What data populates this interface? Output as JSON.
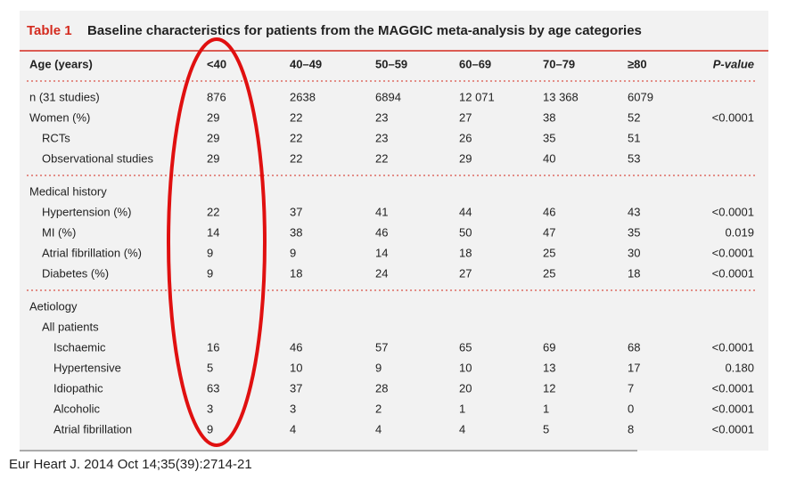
{
  "table": {
    "label": "Table 1",
    "title": "Baseline characteristics for patients from the MAGGIC meta-analysis by age categories",
    "header": [
      "Age (years)",
      "<40",
      "40–49",
      "50–59",
      "60–69",
      "70–79",
      "≥80",
      "P-value"
    ],
    "sections": [
      [
        {
          "label": "n (31 studies)",
          "cells": [
            "876",
            "2638",
            "6894",
            "12 071",
            "13 368",
            "6079"
          ]
        },
        {
          "label": "Women (%)",
          "cells": [
            "29",
            "22",
            "23",
            "27",
            "38",
            "52"
          ],
          "p": "<0.0001",
          "children": [
            {
              "label": "RCTs",
              "cells": [
                "29",
                "22",
                "23",
                "26",
                "35",
                "51"
              ]
            },
            {
              "label": "Observational studies",
              "cells": [
                "29",
                "22",
                "22",
                "29",
                "40",
                "53"
              ]
            }
          ]
        }
      ],
      [
        {
          "label": "Medical history",
          "children": [
            {
              "label": "Hypertension (%)",
              "cells": [
                "22",
                "37",
                "41",
                "44",
                "46",
                "43"
              ],
              "p": "<0.0001"
            },
            {
              "label": "MI (%)",
              "cells": [
                "14",
                "38",
                "46",
                "50",
                "47",
                "35"
              ],
              "p": "0.019"
            },
            {
              "label": "Atrial fibrillation (%)",
              "cells": [
                "9",
                "9",
                "14",
                "18",
                "25",
                "30"
              ],
              "p": "<0.0001"
            },
            {
              "label": "Diabetes (%)",
              "cells": [
                "9",
                "18",
                "24",
                "27",
                "25",
                "18"
              ],
              "p": "<0.0001"
            }
          ]
        }
      ],
      [
        {
          "label": "Aetiology",
          "children": [
            {
              "label": "All patients",
              "children": [
                {
                  "label": "Ischaemic",
                  "cells": [
                    "16",
                    "46",
                    "57",
                    "65",
                    "69",
                    "68"
                  ],
                  "p": "<0.0001"
                },
                {
                  "label": "Hypertensive",
                  "cells": [
                    "5",
                    "10",
                    "9",
                    "10",
                    "13",
                    "17"
                  ],
                  "p": "0.180"
                },
                {
                  "label": "Idiopathic",
                  "cells": [
                    "63",
                    "37",
                    "28",
                    "20",
                    "12",
                    "7"
                  ],
                  "p": "<0.0001"
                },
                {
                  "label": "Alcoholic",
                  "cells": [
                    "3",
                    "3",
                    "2",
                    "1",
                    "1",
                    "0"
                  ],
                  "p": "<0.0001"
                },
                {
                  "label": "Atrial fibrillation",
                  "cells": [
                    "9",
                    "4",
                    "4",
                    "4",
                    "5",
                    "8"
                  ],
                  "p": "<0.0001"
                }
              ]
            }
          ]
        }
      ]
    ]
  },
  "citation": "Eur Heart J. 2014 Oct 14;35(39):2714-21"
}
